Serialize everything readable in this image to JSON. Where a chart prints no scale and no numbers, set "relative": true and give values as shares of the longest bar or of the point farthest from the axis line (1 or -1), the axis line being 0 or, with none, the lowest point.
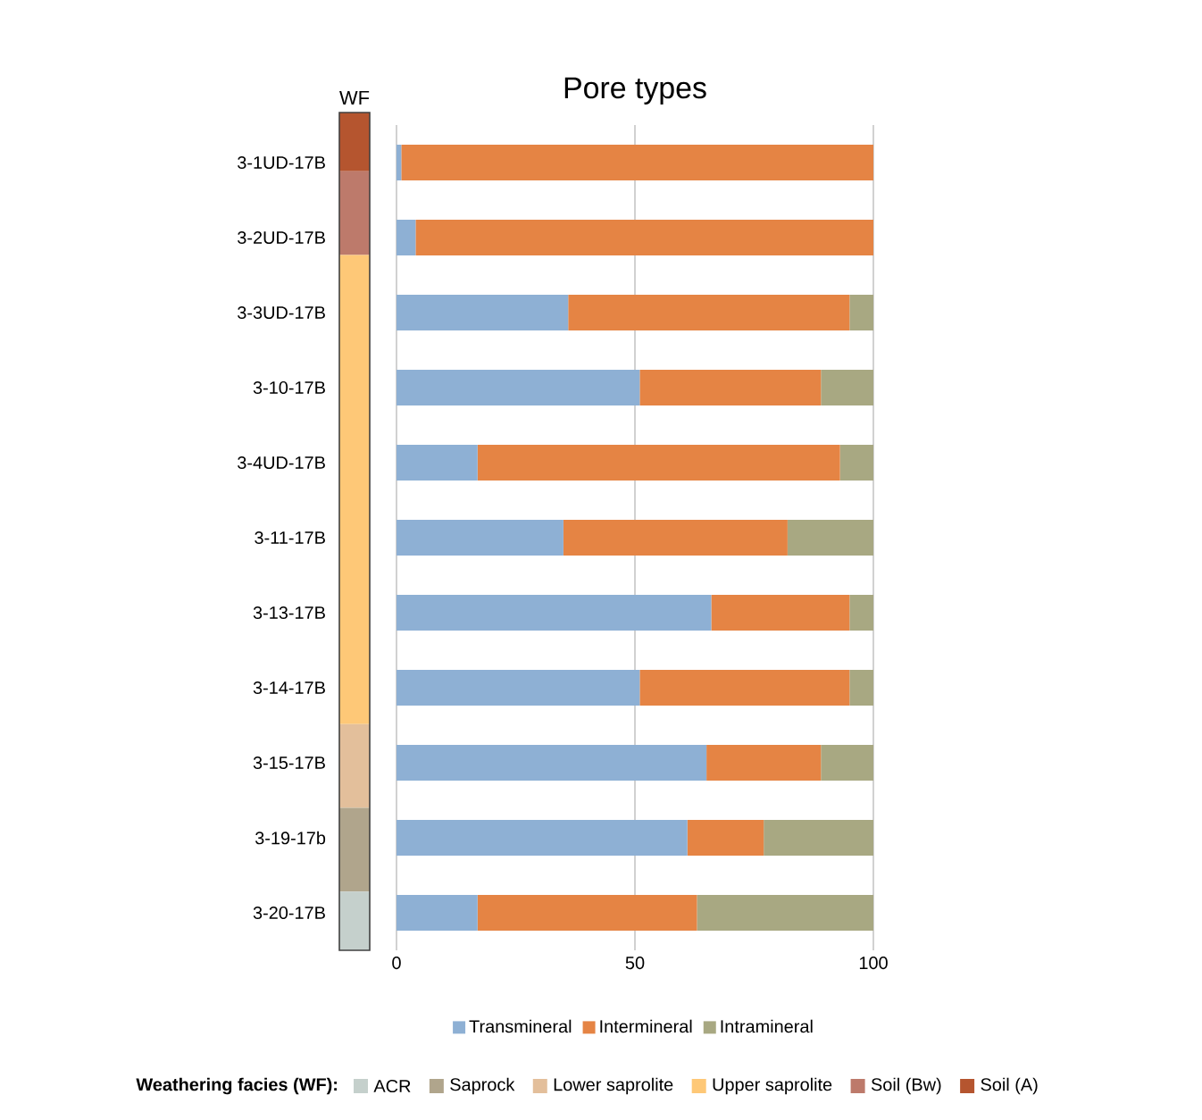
{
  "chart_data": [
    {
      "type": "bar",
      "orientation": "horizontal",
      "stacked": true,
      "title": "Pore types",
      "categories": [
        "3-1UD-17B",
        "3-2UD-17B",
        "3-3UD-17B",
        "3-10-17B",
        "3-4UD-17B",
        "3-11-17B",
        "3-13-17B",
        "3-14-17B",
        "3-15-17B",
        "3-19-17b",
        "3-20-17B"
      ],
      "series": [
        {
          "name": "Transmineral",
          "color": "#8eb0d4",
          "values": [
            1,
            4,
            36,
            51,
            17,
            35,
            66,
            51,
            65,
            61,
            17
          ]
        },
        {
          "name": "Intermineral",
          "color": "#e58444",
          "values": [
            99,
            96,
            59,
            38,
            76,
            47,
            29,
            44,
            24,
            16,
            46
          ]
        },
        {
          "name": "Intramineral",
          "color": "#a8a882",
          "values": [
            0,
            0,
            5,
            11,
            7,
            18,
            5,
            5,
            11,
            23,
            37
          ]
        }
      ],
      "xlim": [
        0,
        100
      ],
      "xticks": [
        0,
        50,
        100
      ],
      "grid": "x",
      "legend": "bottom"
    },
    {
      "type": "bar",
      "stacked": true,
      "relative": true,
      "title": "WF",
      "categories": [
        null
      ],
      "legend_title": "Weathering facies (WF):",
      "legend": "bottom",
      "series": [
        {
          "name": "ACR",
          "color": "#c5d0cc",
          "values": [
            0.07
          ]
        },
        {
          "name": "Saprock",
          "color": "#b0a58c",
          "values": [
            0.1
          ]
        },
        {
          "name": "Lower saprolite",
          "color": "#e3bf9b",
          "values": [
            0.1
          ]
        },
        {
          "name": "Upper saprolite",
          "color": "#fec877",
          "values": [
            0.56
          ]
        },
        {
          "name": "Soil (Bw)",
          "color": "#bd7a6b",
          "values": [
            0.1
          ]
        },
        {
          "name": "Soil (A)",
          "color": "#b5552f",
          "values": [
            0.07
          ]
        }
      ]
    }
  ]
}
